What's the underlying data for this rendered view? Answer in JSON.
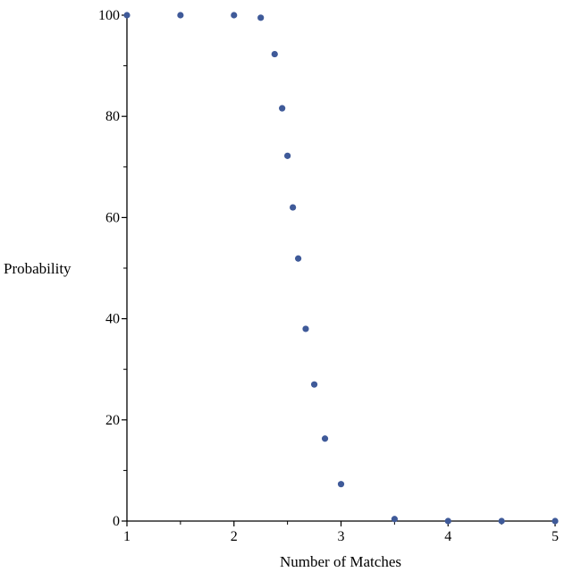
{
  "chart_data": {
    "type": "scatter",
    "title": "",
    "xlabel": "Number of Matches",
    "ylabel": "Probability",
    "xlim": [
      1,
      5
    ],
    "ylim": [
      0,
      100
    ],
    "x_ticks": [
      1,
      2,
      3,
      4,
      5
    ],
    "y_ticks": [
      0,
      20,
      40,
      60,
      80,
      100
    ],
    "x_minor_step": 0.5,
    "y_minor_step": 10,
    "grid": false,
    "legend": "none",
    "marker_color": "#3f5a99",
    "points": [
      {
        "x": 1.0,
        "y": 100
      },
      {
        "x": 1.5,
        "y": 100
      },
      {
        "x": 2.0,
        "y": 100
      },
      {
        "x": 2.25,
        "y": 99.5
      },
      {
        "x": 2.38,
        "y": 92.3
      },
      {
        "x": 2.45,
        "y": 81.6
      },
      {
        "x": 2.5,
        "y": 72.2
      },
      {
        "x": 2.55,
        "y": 62.0
      },
      {
        "x": 2.6,
        "y": 51.9
      },
      {
        "x": 2.67,
        "y": 38.0
      },
      {
        "x": 2.75,
        "y": 27.0
      },
      {
        "x": 2.85,
        "y": 16.3
      },
      {
        "x": 3.0,
        "y": 7.3
      },
      {
        "x": 3.5,
        "y": 0.4
      },
      {
        "x": 4.0,
        "y": 0
      },
      {
        "x": 4.5,
        "y": 0
      },
      {
        "x": 5.0,
        "y": 0
      }
    ]
  }
}
